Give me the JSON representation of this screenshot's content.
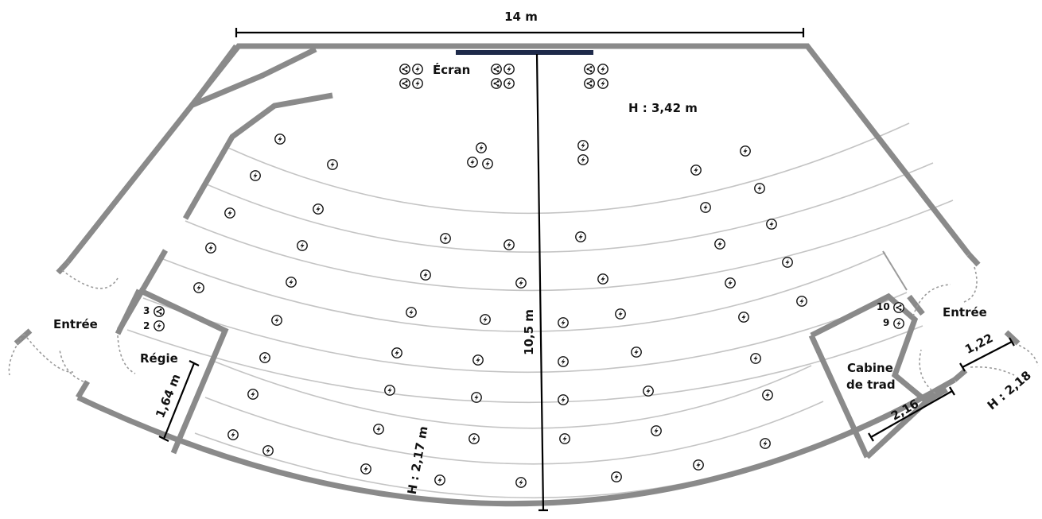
{
  "title": "",
  "dimensions": {
    "width": "14 m",
    "depth": "10,5 m",
    "ceiling_height": "H : 3,42 m",
    "rear_height": "H : 2,17 m",
    "regie_width": "1,64 m",
    "cabine_width": "2,16",
    "door_width": "1,22",
    "door_height": "H : 2,18"
  },
  "labels": {
    "screen": "Écran",
    "entrance_left": "Entrée",
    "entrance_right": "Entrée",
    "regie": "Régie",
    "cabine_line1": "Cabine",
    "cabine_line2": "de trad"
  },
  "numbers": {
    "regie_network": "3",
    "regie_power": "2",
    "cabine_network": "10",
    "cabine_power": "9"
  },
  "icons": {
    "power": "lightning-icon",
    "network": "share-icon"
  },
  "colors": {
    "walls": "#8a8a8a",
    "rows": "#c4c4c4",
    "screen": "#1e2a4a",
    "title": "#1d3b8e"
  }
}
